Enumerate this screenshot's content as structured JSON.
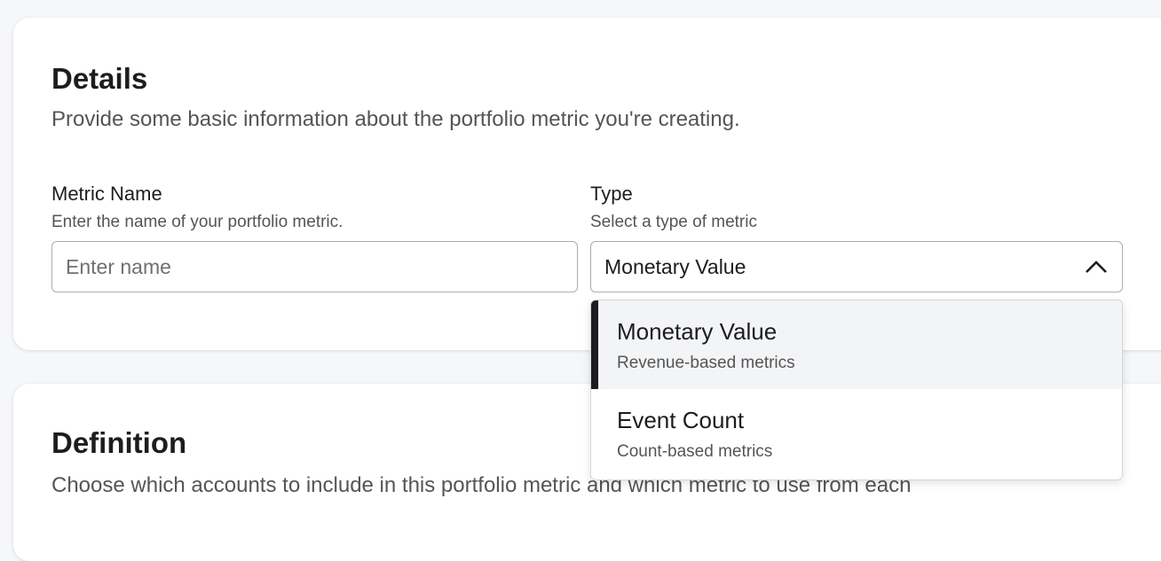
{
  "details": {
    "title": "Details",
    "subtitle": "Provide some basic information about the portfolio metric you're creating.",
    "metric_name": {
      "label": "Metric Name",
      "hint": "Enter the name of your portfolio metric.",
      "value": "",
      "placeholder": "Enter name"
    },
    "type": {
      "label": "Type",
      "hint": "Select a type of metric",
      "value": "Monetary Value",
      "expanded": true,
      "chevron_icon": "chevron-up-icon",
      "options": [
        {
          "label": "Monetary Value",
          "description": "Revenue-based metrics",
          "selected": true
        },
        {
          "label": "Event Count",
          "description": "Count-based metrics",
          "selected": false
        }
      ]
    }
  },
  "definition": {
    "title": "Definition",
    "subtitle": "Choose which accounts to include in this portfolio metric and which metric to use from each"
  },
  "colors": {
    "background": "#f6f7f8",
    "selected_option_bg": "#f3f4f6",
    "selected_indicator": "#1d1d1f"
  }
}
